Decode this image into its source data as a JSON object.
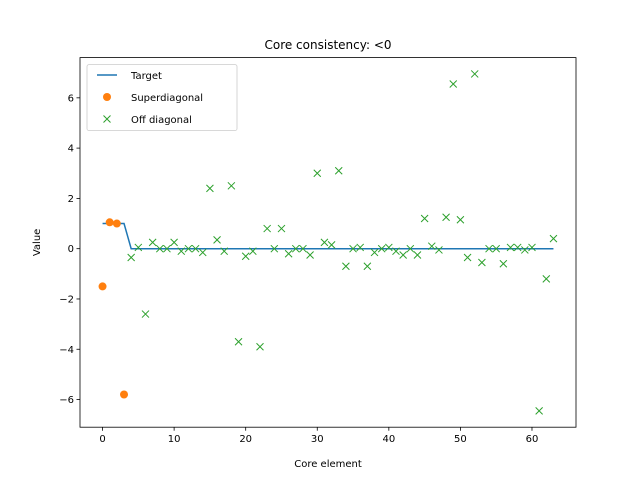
{
  "chart_data": {
    "type": "scatter",
    "title": "Core consistency: <0",
    "xlabel": "Core element",
    "ylabel": "Value",
    "xlim": [
      -3.15,
      66.15
    ],
    "ylim": [
      -7.1,
      7.6
    ],
    "xticks": [
      0,
      10,
      20,
      30,
      40,
      50,
      60
    ],
    "yticks": [
      -6,
      -4,
      -2,
      0,
      2,
      4,
      6
    ],
    "legend_position": "top-left",
    "series": [
      {
        "name": "Target",
        "kind": "line",
        "color": "#1f77b4",
        "x": [
          0,
          1,
          2,
          3,
          4,
          5,
          6,
          7,
          8,
          9,
          10,
          11,
          12,
          13,
          14,
          15,
          16,
          17,
          18,
          19,
          20,
          21,
          22,
          23,
          24,
          25,
          26,
          27,
          28,
          29,
          30,
          31,
          32,
          33,
          34,
          35,
          36,
          37,
          38,
          39,
          40,
          41,
          42,
          43,
          44,
          45,
          46,
          47,
          48,
          49,
          50,
          51,
          52,
          53,
          54,
          55,
          56,
          57,
          58,
          59,
          60,
          61,
          62,
          63
        ],
        "y": [
          1,
          1,
          1,
          1,
          0,
          0,
          0,
          0,
          0,
          0,
          0,
          0,
          0,
          0,
          0,
          0,
          0,
          0,
          0,
          0,
          0,
          0,
          0,
          0,
          0,
          0,
          0,
          0,
          0,
          0,
          0,
          0,
          0,
          0,
          0,
          0,
          0,
          0,
          0,
          0,
          0,
          0,
          0,
          0,
          0,
          0,
          0,
          0,
          0,
          0,
          0,
          0,
          0,
          0,
          0,
          0,
          0,
          0,
          0,
          0,
          0,
          0,
          0,
          0
        ]
      },
      {
        "name": "Superdiagonal",
        "kind": "circle",
        "color": "#ff7f0e",
        "x": [
          0,
          1,
          2,
          3
        ],
        "y": [
          -1.5,
          1.05,
          1.0,
          -5.8
        ]
      },
      {
        "name": "Off diagonal",
        "kind": "x",
        "color": "#2ca02c",
        "x": [
          4,
          5,
          6,
          7,
          8,
          9,
          10,
          11,
          12,
          13,
          14,
          15,
          16,
          17,
          18,
          19,
          20,
          21,
          22,
          23,
          24,
          25,
          26,
          27,
          28,
          29,
          30,
          31,
          32,
          33,
          34,
          35,
          36,
          37,
          38,
          39,
          40,
          41,
          42,
          43,
          44,
          45,
          46,
          47,
          48,
          49,
          50,
          51,
          52,
          53,
          54,
          55,
          56,
          57,
          58,
          59,
          60,
          61,
          62,
          63
        ],
        "y": [
          -0.35,
          0.05,
          -2.6,
          0.25,
          0.0,
          0.0,
          0.25,
          -0.1,
          0.0,
          0.0,
          -0.15,
          2.4,
          0.35,
          -0.1,
          2.5,
          -3.7,
          -0.3,
          -0.1,
          -3.9,
          0.8,
          0.0,
          0.8,
          -0.2,
          0.0,
          0.0,
          -0.25,
          3.0,
          0.25,
          0.15,
          3.1,
          -0.7,
          0.0,
          0.05,
          -0.7,
          -0.15,
          0.0,
          0.05,
          -0.1,
          -0.25,
          0.0,
          -0.25,
          1.2,
          0.1,
          -0.05,
          1.25,
          6.55,
          1.15,
          -0.35,
          6.95,
          -0.55,
          0.0,
          0.0,
          -0.6,
          0.05,
          0.05,
          -0.05,
          0.05,
          -6.45,
          -1.2,
          0.4
        ]
      }
    ]
  }
}
